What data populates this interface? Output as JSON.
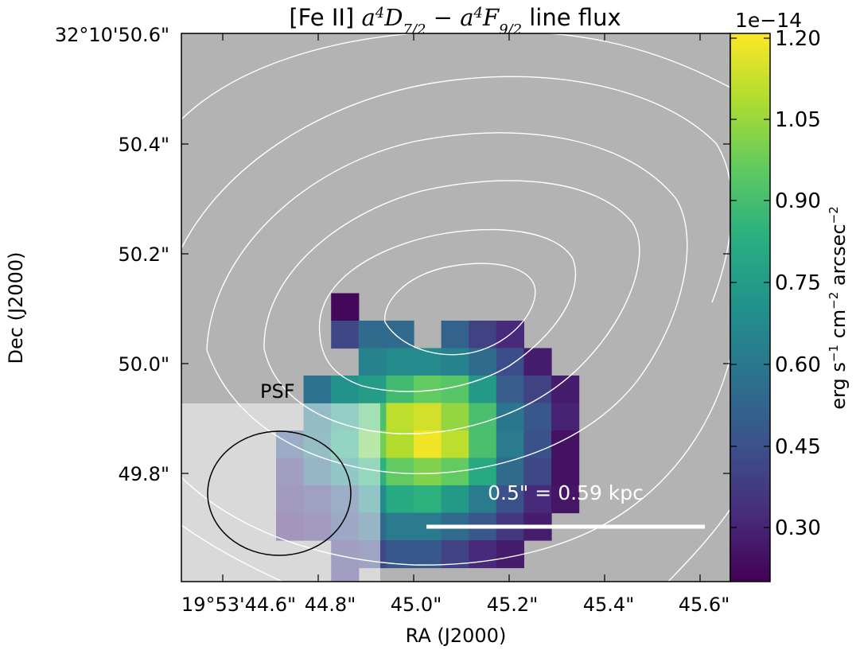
{
  "chart_data": {
    "type": "heatmap",
    "title": "[Fe II] a⁴D₇/₂ − a⁴F₉/₂ line flux",
    "title_parts": {
      "prefix": "[Fe II] ",
      "suffix": " line flux"
    },
    "xlabel": "RA (J2000)",
    "ylabel": "Dec (J2000)",
    "x_tick_labels": [
      "19°53'44.6\"",
      "44.8\"",
      "45.0\"",
      "45.2\"",
      "45.4\"",
      "45.6\""
    ],
    "y_tick_labels": [
      "32°10'50.6\"",
      "50.4\"",
      "50.2\"",
      "50.0\"",
      "49.8\""
    ],
    "colorbar": {
      "label": "erg s⁻¹ cm⁻² arcsec⁻²",
      "label_parts": {
        "a": "erg s",
        "b": " cm",
        "c": " arcsec",
        "sup": "−1",
        "sup2": "−2"
      },
      "multiplier": "1e−14",
      "tick_labels": [
        "1.20",
        "1.05",
        "0.90",
        "0.75",
        "0.60",
        "0.45",
        "0.30"
      ],
      "range": [
        0.2,
        1.22
      ],
      "colormap": "viridis"
    },
    "grid": false,
    "background_color": "#b3b3b3",
    "pixels": [
      [
        2,
        5,
        0.22
      ],
      [
        2,
        6,
        0.42
      ],
      [
        3,
        6,
        0.55
      ],
      [
        4,
        6,
        0.55
      ],
      [
        6,
        6,
        0.52
      ],
      [
        7,
        6,
        0.4
      ],
      [
        8,
        6,
        0.32
      ],
      [
        3,
        7,
        0.65
      ],
      [
        4,
        7,
        0.68
      ],
      [
        5,
        7,
        0.68
      ],
      [
        6,
        7,
        0.65
      ],
      [
        7,
        7,
        0.55
      ],
      [
        8,
        7,
        0.44
      ],
      [
        9,
        7,
        0.28
      ],
      [
        1,
        8,
        0.58
      ],
      [
        2,
        8,
        0.72
      ],
      [
        3,
        8,
        0.76
      ],
      [
        4,
        8,
        0.9
      ],
      [
        5,
        8,
        0.97
      ],
      [
        6,
        8,
        0.95
      ],
      [
        7,
        8,
        0.75
      ],
      [
        8,
        8,
        0.5
      ],
      [
        9,
        8,
        0.4
      ],
      [
        10,
        8,
        0.28
      ],
      [
        1,
        9,
        0.6
      ],
      [
        2,
        9,
        0.76
      ],
      [
        3,
        9,
        0.92
      ],
      [
        4,
        9,
        1.12
      ],
      [
        5,
        9,
        1.15
      ],
      [
        6,
        9,
        1.05
      ],
      [
        7,
        9,
        0.92
      ],
      [
        8,
        9,
        0.6
      ],
      [
        9,
        9,
        0.48
      ],
      [
        10,
        9,
        0.3
      ],
      [
        0,
        10,
        0.48
      ],
      [
        1,
        10,
        0.62
      ],
      [
        2,
        10,
        0.82
      ],
      [
        3,
        10,
        1.0
      ],
      [
        4,
        10,
        1.1
      ],
      [
        5,
        10,
        1.2
      ],
      [
        6,
        10,
        1.12
      ],
      [
        7,
        10,
        0.92
      ],
      [
        8,
        10,
        0.62
      ],
      [
        9,
        10,
        0.45
      ],
      [
        10,
        10,
        0.25
      ],
      [
        0,
        11,
        0.38
      ],
      [
        1,
        11,
        0.55
      ],
      [
        2,
        11,
        0.7
      ],
      [
        3,
        11,
        0.85
      ],
      [
        4,
        11,
        0.97
      ],
      [
        5,
        11,
        1.02
      ],
      [
        6,
        11,
        0.97
      ],
      [
        7,
        11,
        0.82
      ],
      [
        8,
        11,
        0.55
      ],
      [
        9,
        11,
        0.42
      ],
      [
        10,
        11,
        0.25
      ],
      [
        0,
        12,
        0.36
      ],
      [
        1,
        12,
        0.4
      ],
      [
        2,
        12,
        0.5
      ],
      [
        3,
        12,
        0.68
      ],
      [
        4,
        12,
        0.82
      ],
      [
        5,
        12,
        0.85
      ],
      [
        6,
        12,
        0.75
      ],
      [
        7,
        12,
        0.62
      ],
      [
        8,
        12,
        0.45
      ],
      [
        9,
        12,
        0.32
      ],
      [
        10,
        12,
        0.26
      ],
      [
        0,
        13,
        0.32
      ],
      [
        1,
        13,
        0.35
      ],
      [
        2,
        13,
        0.45
      ],
      [
        3,
        13,
        0.55
      ],
      [
        4,
        13,
        0.62
      ],
      [
        5,
        13,
        0.62
      ],
      [
        6,
        13,
        0.55
      ],
      [
        7,
        13,
        0.48
      ],
      [
        8,
        13,
        0.36
      ],
      [
        9,
        13,
        0.28
      ],
      [
        2,
        14,
        0.38
      ],
      [
        3,
        14,
        0.42
      ],
      [
        4,
        14,
        0.48
      ],
      [
        5,
        14,
        0.48
      ],
      [
        6,
        14,
        0.4
      ],
      [
        7,
        14,
        0.32
      ],
      [
        8,
        14,
        0.28
      ],
      [
        2,
        15,
        0.38
      ],
      [
        9,
        16,
        0.22
      ]
    ],
    "pixel_grid": {
      "columns": 12,
      "rows": 19
    },
    "psf": {
      "label": "PSF"
    },
    "scale_bar": {
      "label": "0.5\" = 0.59 kpc"
    }
  }
}
